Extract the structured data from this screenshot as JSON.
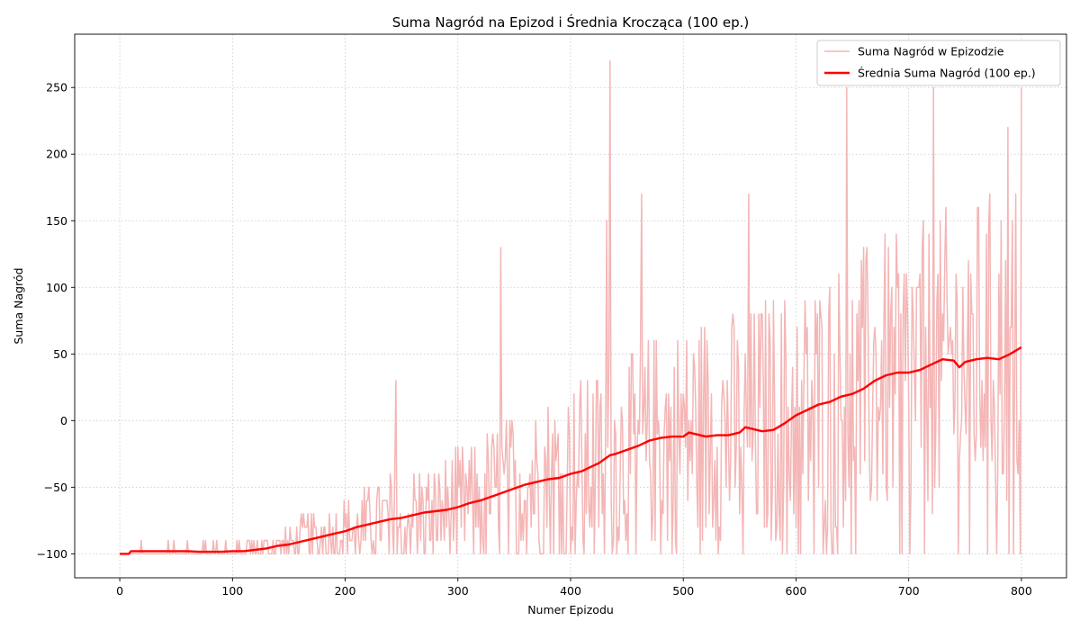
{
  "chart_data": {
    "type": "line",
    "title": "Suma Nagród na Epizod i Średnia Krocząca (100 ep.)",
    "xlabel": "Numer Epizodu",
    "ylabel": "Suma Nagród",
    "xlim": [
      -40,
      840
    ],
    "ylim": [
      -118,
      290
    ],
    "xticks": [
      0,
      100,
      200,
      300,
      400,
      500,
      600,
      700,
      800
    ],
    "xtick_labels": [
      "0",
      "100",
      "200",
      "300",
      "400",
      "500",
      "600",
      "700",
      "800"
    ],
    "yticks": [
      -100,
      -50,
      0,
      50,
      100,
      150,
      200,
      250
    ],
    "ytick_labels": [
      "−100",
      "−50",
      "0",
      "50",
      "100",
      "150",
      "200",
      "250"
    ],
    "grid": true,
    "legend_position": "top-right",
    "series": [
      {
        "name": "Suma Nagród w Epizodzie",
        "color": "#f4b6b6",
        "style": "raw-episode-rewards",
        "x_range": [
          1,
          800
        ],
        "trend": [
          [
            1,
            -100
          ],
          [
            100,
            -98
          ],
          [
            150,
            -94
          ],
          [
            200,
            -84
          ],
          [
            250,
            -72
          ],
          [
            300,
            -65
          ],
          [
            350,
            -50
          ],
          [
            400,
            -38
          ],
          [
            450,
            -25
          ],
          [
            500,
            -10
          ],
          [
            550,
            -8
          ],
          [
            600,
            5
          ],
          [
            650,
            20
          ],
          [
            700,
            36
          ],
          [
            750,
            44
          ],
          [
            800,
            56
          ]
        ],
        "noise_amplitude_trend": [
          [
            1,
            4
          ],
          [
            100,
            6
          ],
          [
            200,
            20
          ],
          [
            300,
            35
          ],
          [
            400,
            55
          ],
          [
            500,
            70
          ],
          [
            600,
            80
          ],
          [
            700,
            90
          ],
          [
            800,
            100
          ]
        ],
        "min": -100,
        "max": 270,
        "peaks": [
          [
            245,
            30
          ],
          [
            338,
            130
          ],
          [
            432,
            150
          ],
          [
            435,
            270
          ],
          [
            463,
            170
          ],
          [
            558,
            170
          ],
          [
            645,
            250
          ],
          [
            722,
            250
          ],
          [
            788,
            220
          ],
          [
            800,
            250
          ]
        ]
      },
      {
        "name": "Średnia Suma Nagród (100 ep.)",
        "color": "#ff0000",
        "style": "rolling-mean",
        "x": [
          0,
          8,
          10,
          20,
          30,
          40,
          50,
          60,
          70,
          80,
          90,
          100,
          110,
          120,
          130,
          140,
          150,
          160,
          170,
          180,
          190,
          200,
          210,
          220,
          230,
          240,
          250,
          260,
          270,
          280,
          290,
          300,
          310,
          320,
          330,
          340,
          350,
          360,
          370,
          380,
          390,
          400,
          410,
          420,
          425,
          430,
          435,
          440,
          450,
          460,
          470,
          480,
          490,
          500,
          505,
          510,
          520,
          530,
          540,
          550,
          555,
          560,
          570,
          580,
          590,
          600,
          610,
          620,
          630,
          640,
          650,
          660,
          670,
          680,
          690,
          700,
          710,
          720,
          730,
          740,
          745,
          750,
          760,
          770,
          780,
          790,
          800
        ],
        "y": [
          -100,
          -100,
          -98,
          -98,
          -98,
          -98,
          -98,
          -98,
          -98.5,
          -98.5,
          -98.5,
          -98,
          -98,
          -97,
          -96,
          -94,
          -93,
          -91,
          -89,
          -87,
          -85,
          -83,
          -80,
          -78,
          -76,
          -74,
          -73,
          -71,
          -69,
          -68,
          -67,
          -65,
          -62,
          -60,
          -57,
          -54,
          -51,
          -48,
          -46,
          -44,
          -43,
          -40,
          -38,
          -34,
          -32,
          -29,
          -26,
          -25,
          -22,
          -19,
          -15,
          -13,
          -12,
          -12,
          -9,
          -10,
          -12,
          -11,
          -11,
          -9,
          -5,
          -6,
          -8,
          -7,
          -2,
          4,
          8,
          12,
          14,
          18,
          20,
          24,
          30,
          34,
          36,
          36,
          38,
          42,
          46,
          45,
          40,
          44,
          46,
          47,
          46,
          50,
          55
        ]
      }
    ]
  }
}
